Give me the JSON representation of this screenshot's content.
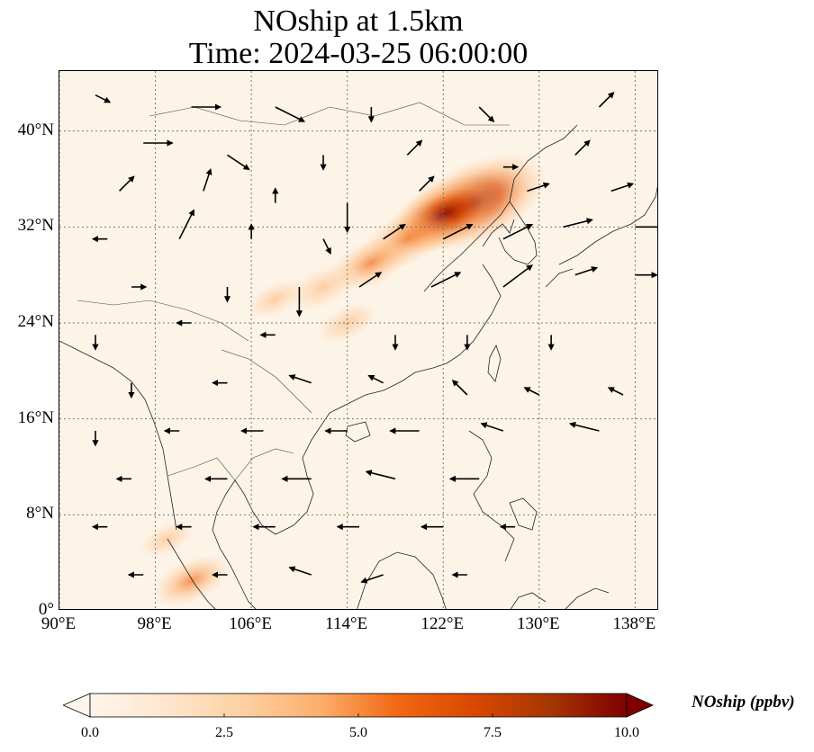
{
  "title": {
    "line1": "NOship at 1.5km",
    "line2": "Time: 2024-03-25 06:00:00"
  },
  "map": {
    "projection": "PlateCarree",
    "lon_range": [
      90,
      140
    ],
    "lat_range": [
      0,
      45
    ],
    "gridlines": true,
    "lon_ticks": [
      {
        "value": 90,
        "label": "90°E"
      },
      {
        "value": 98,
        "label": "98°E"
      },
      {
        "value": 106,
        "label": "106°E"
      },
      {
        "value": 114,
        "label": "114°E"
      },
      {
        "value": 122,
        "label": "122°E"
      },
      {
        "value": 130,
        "label": "130°E"
      },
      {
        "value": 138,
        "label": "138°E"
      }
    ],
    "lat_ticks": [
      {
        "value": 0,
        "label": "0°"
      },
      {
        "value": 8,
        "label": "8°N"
      },
      {
        "value": 16,
        "label": "16°N"
      },
      {
        "value": 24,
        "label": "24°N"
      },
      {
        "value": 32,
        "label": "32°N"
      },
      {
        "value": 40,
        "label": "40°N"
      }
    ],
    "field": "NOship",
    "hotspots": [
      {
        "lon": 124.5,
        "lat": 34,
        "value": 9.5
      },
      {
        "lon": 122,
        "lat": 33,
        "value": 6.5
      },
      {
        "lon": 119,
        "lat": 31,
        "value": 4.5
      },
      {
        "lon": 116,
        "lat": 29,
        "value": 3.5
      },
      {
        "lon": 112,
        "lat": 27,
        "value": 2.5
      },
      {
        "lon": 114,
        "lat": 24,
        "value": 1.5
      },
      {
        "lon": 108,
        "lat": 26,
        "value": 1.2
      },
      {
        "lon": 101,
        "lat": 2.5,
        "value": 3.0
      },
      {
        "lon": 99,
        "lat": 6,
        "value": 1.0
      }
    ],
    "wind_vectors": [
      {
        "lon": 93,
        "lat": 43,
        "u": 1,
        "v": -0.5
      },
      {
        "lon": 101,
        "lat": 42,
        "u": 2,
        "v": 0
      },
      {
        "lon": 108,
        "lat": 42,
        "u": 2,
        "v": -1
      },
      {
        "lon": 116,
        "lat": 42,
        "u": 0,
        "v": -1
      },
      {
        "lon": 125,
        "lat": 42,
        "u": 1,
        "v": -1
      },
      {
        "lon": 135,
        "lat": 42,
        "u": 1,
        "v": 1
      },
      {
        "lon": 97,
        "lat": 39,
        "u": 2,
        "v": 0
      },
      {
        "lon": 104,
        "lat": 38,
        "u": 1.5,
        "v": -1
      },
      {
        "lon": 112,
        "lat": 38,
        "u": 0,
        "v": -1
      },
      {
        "lon": 119,
        "lat": 38,
        "u": 1,
        "v": 1
      },
      {
        "lon": 127,
        "lat": 37,
        "u": 1,
        "v": 0
      },
      {
        "lon": 133,
        "lat": 38,
        "u": 1,
        "v": 1
      },
      {
        "lon": 95,
        "lat": 35,
        "u": 1,
        "v": 1
      },
      {
        "lon": 102,
        "lat": 35,
        "u": 0.5,
        "v": 1.5
      },
      {
        "lon": 108,
        "lat": 34,
        "u": 0,
        "v": 1
      },
      {
        "lon": 114,
        "lat": 34,
        "u": 0,
        "v": -2
      },
      {
        "lon": 120,
        "lat": 35,
        "u": 1,
        "v": 1
      },
      {
        "lon": 129,
        "lat": 35,
        "u": 1.5,
        "v": 0.5
      },
      {
        "lon": 136,
        "lat": 35,
        "u": 1.5,
        "v": 0.5
      },
      {
        "lon": 94,
        "lat": 31,
        "u": -1,
        "v": 0
      },
      {
        "lon": 100,
        "lat": 31,
        "u": 1,
        "v": 2
      },
      {
        "lon": 106,
        "lat": 31,
        "u": 0,
        "v": 1
      },
      {
        "lon": 112,
        "lat": 31,
        "u": 0.5,
        "v": -1
      },
      {
        "lon": 117,
        "lat": 31,
        "u": 1.5,
        "v": 1
      },
      {
        "lon": 122,
        "lat": 31,
        "u": 2,
        "v": 1
      },
      {
        "lon": 127,
        "lat": 31,
        "u": 2,
        "v": 1
      },
      {
        "lon": 132,
        "lat": 32,
        "u": 2,
        "v": 0.5
      },
      {
        "lon": 138,
        "lat": 32,
        "u": 2,
        "v": 0
      },
      {
        "lon": 96,
        "lat": 27,
        "u": 1,
        "v": 0
      },
      {
        "lon": 104,
        "lat": 27,
        "u": 0,
        "v": -1
      },
      {
        "lon": 110,
        "lat": 27,
        "u": 0,
        "v": -2
      },
      {
        "lon": 115,
        "lat": 27,
        "u": 1.5,
        "v": 1
      },
      {
        "lon": 121,
        "lat": 27,
        "u": 2,
        "v": 1
      },
      {
        "lon": 127,
        "lat": 27,
        "u": 2,
        "v": 1.5
      },
      {
        "lon": 133,
        "lat": 28,
        "u": 1.5,
        "v": 0.5
      },
      {
        "lon": 138,
        "lat": 28,
        "u": 1.5,
        "v": 0
      },
      {
        "lon": 93,
        "lat": 23,
        "u": 0,
        "v": -1
      },
      {
        "lon": 101,
        "lat": 24,
        "u": -1,
        "v": 0
      },
      {
        "lon": 108,
        "lat": 23,
        "u": -1,
        "v": 0
      },
      {
        "lon": 118,
        "lat": 23,
        "u": 0,
        "v": -1
      },
      {
        "lon": 124,
        "lat": 23,
        "u": 0,
        "v": -1
      },
      {
        "lon": 131,
        "lat": 23,
        "u": 0,
        "v": -1
      },
      {
        "lon": 96,
        "lat": 19,
        "u": 0,
        "v": -1
      },
      {
        "lon": 104,
        "lat": 19,
        "u": -1,
        "v": 0
      },
      {
        "lon": 111,
        "lat": 19,
        "u": -1.5,
        "v": 0.5
      },
      {
        "lon": 117,
        "lat": 19,
        "u": -1,
        "v": 0.5
      },
      {
        "lon": 124,
        "lat": 18,
        "u": -1,
        "v": 1
      },
      {
        "lon": 130,
        "lat": 18,
        "u": -1,
        "v": 0.5
      },
      {
        "lon": 137,
        "lat": 18,
        "u": -1,
        "v": 0.5
      },
      {
        "lon": 93,
        "lat": 15,
        "u": 0,
        "v": -1
      },
      {
        "lon": 100,
        "lat": 15,
        "u": -1,
        "v": 0
      },
      {
        "lon": 107,
        "lat": 15,
        "u": -1.5,
        "v": 0
      },
      {
        "lon": 114,
        "lat": 15,
        "u": -1.5,
        "v": 0
      },
      {
        "lon": 120,
        "lat": 15,
        "u": -2,
        "v": 0
      },
      {
        "lon": 127,
        "lat": 15,
        "u": -1.5,
        "v": 0.5
      },
      {
        "lon": 135,
        "lat": 15,
        "u": -2,
        "v": 0.5
      },
      {
        "lon": 96,
        "lat": 11,
        "u": -1,
        "v": 0
      },
      {
        "lon": 104,
        "lat": 11,
        "u": -1.5,
        "v": 0
      },
      {
        "lon": 111,
        "lat": 11,
        "u": -2,
        "v": 0
      },
      {
        "lon": 118,
        "lat": 11,
        "u": -2,
        "v": 0.5
      },
      {
        "lon": 125,
        "lat": 11,
        "u": -2,
        "v": 0
      },
      {
        "lon": 94,
        "lat": 7,
        "u": -1,
        "v": 0
      },
      {
        "lon": 101,
        "lat": 7,
        "u": -1,
        "v": 0
      },
      {
        "lon": 108,
        "lat": 7,
        "u": -1.5,
        "v": 0
      },
      {
        "lon": 115,
        "lat": 7,
        "u": -1.5,
        "v": 0
      },
      {
        "lon": 122,
        "lat": 7,
        "u": -1.5,
        "v": 0
      },
      {
        "lon": 128,
        "lat": 7,
        "u": -1,
        "v": 0
      },
      {
        "lon": 97,
        "lat": 3,
        "u": -1,
        "v": 0
      },
      {
        "lon": 104,
        "lat": 3,
        "u": -1,
        "v": 0
      },
      {
        "lon": 111,
        "lat": 3,
        "u": -1.5,
        "v": 0.5
      },
      {
        "lon": 117,
        "lat": 3,
        "u": -1.5,
        "v": -0.5
      },
      {
        "lon": 124,
        "lat": 3,
        "u": -1,
        "v": 0
      }
    ]
  },
  "colorbar": {
    "label": "NOship (ppbv)",
    "min": 0,
    "max": 10,
    "extend": "both",
    "colormap": [
      "#fff5eb",
      "#fee6ce",
      "#fdd0a2",
      "#fdae6b",
      "#f16913",
      "#d94801",
      "#a63603",
      "#7f0000"
    ],
    "ticks": [
      {
        "value": 0,
        "label": "0.0"
      },
      {
        "value": 2.5,
        "label": "2.5"
      },
      {
        "value": 5,
        "label": "5.0"
      },
      {
        "value": 7.5,
        "label": "7.5"
      },
      {
        "value": 10,
        "label": "10.0"
      }
    ]
  }
}
